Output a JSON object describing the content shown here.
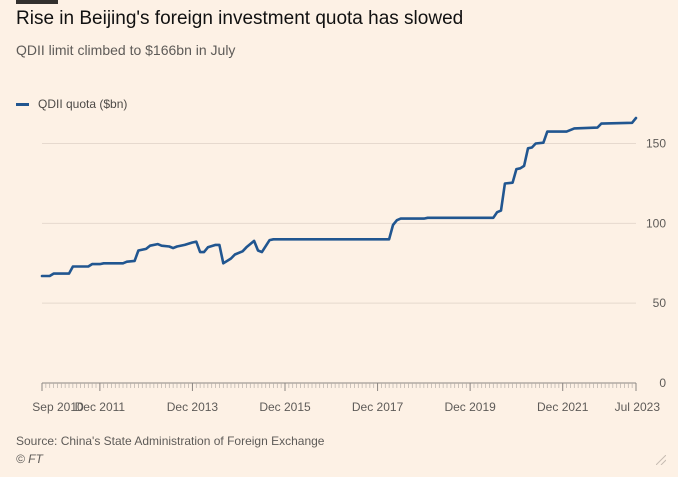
{
  "header": {
    "title": "Rise in Beijing's foreign investment quota has slowed",
    "subtitle": "QDII limit climbed to $166bn in July"
  },
  "footer": {
    "source": "Source: China's State Administration of Foreign Exchange",
    "credit": "© FT"
  },
  "colors": {
    "background": "#fdf1e5",
    "series": "#215690",
    "grid": "#e6d9ce",
    "text": "#5e5b58"
  },
  "chart_data": {
    "type": "line",
    "title": "Rise in Beijing's foreign investment quota has slowed",
    "subtitle": "QDII limit climbed to $166bn in July",
    "xlabel": "",
    "ylabel": "",
    "xlim": [
      "2010-09",
      "2023-07"
    ],
    "ylim": [
      0,
      166
    ],
    "y_ticks": [
      0,
      50,
      100,
      150
    ],
    "x_tick_labels": [
      {
        "label": "Sep 2010",
        "date": "2010-09"
      },
      {
        "label": "Dec 2011",
        "date": "2011-12"
      },
      {
        "label": "Dec 2013",
        "date": "2013-12"
      },
      {
        "label": "Dec 2015",
        "date": "2015-12"
      },
      {
        "label": "Dec 2017",
        "date": "2017-12"
      },
      {
        "label": "Dec 2019",
        "date": "2019-12"
      },
      {
        "label": "Dec 2021",
        "date": "2021-12"
      },
      {
        "label": "Jul 2023",
        "date": "2023-07"
      }
    ],
    "grid": true,
    "y_axis_side": "right",
    "legend_position": "top-left",
    "series": [
      {
        "name": "QDII quota ($bn)",
        "color": "#215690",
        "points": [
          [
            "2010-09",
            67
          ],
          [
            "2010-11",
            67
          ],
          [
            "2010-12",
            68.5
          ],
          [
            "2011-04",
            68.5
          ],
          [
            "2011-05",
            73
          ],
          [
            "2011-09",
            73
          ],
          [
            "2011-10",
            74.5
          ],
          [
            "2011-12",
            74.5
          ],
          [
            "2012-01",
            75
          ],
          [
            "2012-06",
            75
          ],
          [
            "2012-07",
            76
          ],
          [
            "2012-09",
            76.5
          ],
          [
            "2012-10",
            83
          ],
          [
            "2012-12",
            84
          ],
          [
            "2013-01",
            86
          ],
          [
            "2013-03",
            87
          ],
          [
            "2013-04",
            86
          ],
          [
            "2013-06",
            85.5
          ],
          [
            "2013-07",
            84.5
          ],
          [
            "2013-08",
            85.5
          ],
          [
            "2013-10",
            86.5
          ],
          [
            "2013-12",
            88
          ],
          [
            "2014-01",
            88.5
          ],
          [
            "2014-02",
            82
          ],
          [
            "2014-03",
            82
          ],
          [
            "2014-04",
            85
          ],
          [
            "2014-06",
            86.5
          ],
          [
            "2014-07",
            86.5
          ],
          [
            "2014-08",
            75
          ],
          [
            "2014-10",
            78
          ],
          [
            "2014-11",
            80.5
          ],
          [
            "2015-01",
            82.5
          ],
          [
            "2015-02",
            85
          ],
          [
            "2015-04",
            89
          ],
          [
            "2015-05",
            83
          ],
          [
            "2015-06",
            82
          ],
          [
            "2015-08",
            89.5
          ],
          [
            "2015-09",
            90
          ],
          [
            "2016-06",
            90
          ],
          [
            "2017-12",
            90
          ],
          [
            "2018-03",
            90
          ],
          [
            "2018-04",
            99
          ],
          [
            "2018-05",
            102
          ],
          [
            "2018-06",
            103
          ],
          [
            "2018-12",
            103
          ],
          [
            "2019-01",
            103.5
          ],
          [
            "2019-12",
            103.5
          ],
          [
            "2020-06",
            103.5
          ],
          [
            "2020-07",
            107
          ],
          [
            "2020-08",
            108
          ],
          [
            "2020-09",
            125
          ],
          [
            "2020-11",
            125.5
          ],
          [
            "2020-12",
            134
          ],
          [
            "2021-01",
            134.5
          ],
          [
            "2021-02",
            136
          ],
          [
            "2021-03",
            147
          ],
          [
            "2021-04",
            147.5
          ],
          [
            "2021-05",
            150
          ],
          [
            "2021-07",
            150.5
          ],
          [
            "2021-08",
            157.5
          ],
          [
            "2021-12",
            157.5
          ],
          [
            "2022-01",
            157.5
          ],
          [
            "2022-03",
            159.5
          ],
          [
            "2022-09",
            160
          ],
          [
            "2022-10",
            162.5
          ],
          [
            "2023-06",
            163
          ],
          [
            "2023-07",
            166
          ]
        ]
      }
    ]
  }
}
